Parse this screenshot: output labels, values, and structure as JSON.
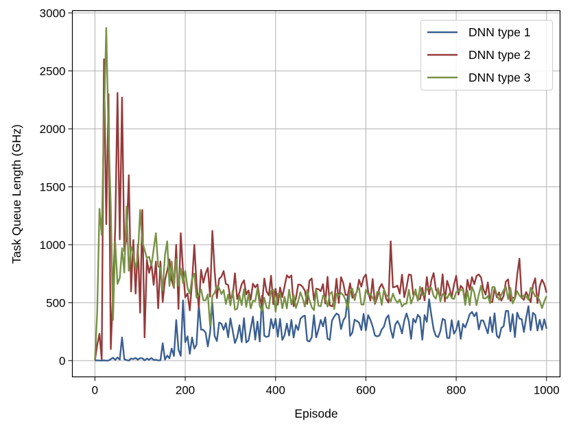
{
  "chart_data": {
    "type": "line",
    "title": "",
    "xlabel": "Episode",
    "ylabel": "Task Queue Length (GHz)",
    "xlim": [
      -50,
      1030
    ],
    "ylim": [
      -140,
      3020
    ],
    "xticks": [
      0,
      200,
      400,
      600,
      800,
      1000
    ],
    "yticks": [
      0,
      500,
      1000,
      1500,
      2000,
      2500,
      3000
    ],
    "grid": true,
    "legend_position": "top-right",
    "sample_step": 5,
    "series": [
      {
        "name": "DNN type 1",
        "color": "#3a5f91",
        "anchors": [
          [
            0,
            0
          ],
          [
            20,
            5
          ],
          [
            40,
            15
          ],
          [
            60,
            20
          ],
          [
            80,
            10
          ],
          [
            100,
            15
          ],
          [
            120,
            25
          ],
          [
            140,
            40
          ],
          [
            160,
            60
          ],
          [
            180,
            80
          ],
          [
            200,
            120
          ],
          [
            220,
            150
          ],
          [
            240,
            200
          ],
          [
            260,
            230
          ],
          [
            280,
            250
          ],
          [
            300,
            260
          ],
          [
            350,
            270
          ],
          [
            400,
            280
          ],
          [
            500,
            280
          ],
          [
            600,
            300
          ],
          [
            700,
            290
          ],
          [
            800,
            300
          ],
          [
            900,
            310
          ],
          [
            1000,
            320
          ]
        ],
        "noise": [
          [
            0,
            10
          ],
          [
            100,
            20
          ],
          [
            180,
            60
          ],
          [
            200,
            100
          ],
          [
            300,
            120
          ],
          [
            1000,
            120
          ]
        ],
        "spikes": [
          [
            60,
            200
          ],
          [
            150,
            150
          ],
          [
            180,
            350
          ],
          [
            195,
            520
          ],
          [
            230,
            480
          ],
          [
            260,
            500
          ],
          [
            370,
            560
          ],
          [
            560,
            560
          ],
          [
            740,
            530
          ],
          [
            960,
            470
          ]
        ]
      },
      {
        "name": "DNN type 2",
        "color": "#953a3a",
        "anchors": [
          [
            0,
            0
          ],
          [
            10,
            50
          ],
          [
            15,
            200
          ],
          [
            20,
            700
          ],
          [
            25,
            1300
          ],
          [
            30,
            1100
          ],
          [
            40,
            1000
          ],
          [
            50,
            1050
          ],
          [
            60,
            1000
          ],
          [
            70,
            900
          ],
          [
            80,
            800
          ],
          [
            90,
            700
          ],
          [
            100,
            720
          ],
          [
            120,
            680
          ],
          [
            140,
            670
          ],
          [
            160,
            640
          ],
          [
            180,
            620
          ],
          [
            200,
            620
          ],
          [
            240,
            640
          ],
          [
            280,
            640
          ],
          [
            300,
            620
          ],
          [
            400,
            600
          ],
          [
            500,
            600
          ],
          [
            600,
            620
          ],
          [
            700,
            640
          ],
          [
            800,
            640
          ],
          [
            900,
            630
          ],
          [
            1000,
            610
          ]
        ],
        "noise": [
          [
            0,
            30
          ],
          [
            15,
            300
          ],
          [
            40,
            500
          ],
          [
            80,
            400
          ],
          [
            130,
            280
          ],
          [
            200,
            200
          ],
          [
            300,
            140
          ],
          [
            1000,
            130
          ]
        ],
        "spikes": [
          [
            22,
            2600
          ],
          [
            28,
            2300
          ],
          [
            35,
            100
          ],
          [
            50,
            2310
          ],
          [
            60,
            2270
          ],
          [
            75,
            1600
          ],
          [
            105,
            1300
          ],
          [
            110,
            200
          ],
          [
            180,
            1000
          ],
          [
            190,
            1100
          ],
          [
            220,
            1000
          ],
          [
            262,
            1120
          ],
          [
            655,
            1030
          ],
          [
            940,
            880
          ]
        ]
      },
      {
        "name": "DNN type 3",
        "color": "#779245",
        "anchors": [
          [
            0,
            0
          ],
          [
            5,
            300
          ],
          [
            10,
            800
          ],
          [
            15,
            1000
          ],
          [
            20,
            1200
          ],
          [
            25,
            1300
          ],
          [
            30,
            1100
          ],
          [
            40,
            950
          ],
          [
            50,
            920
          ],
          [
            60,
            950
          ],
          [
            80,
            900
          ],
          [
            100,
            850
          ],
          [
            120,
            800
          ],
          [
            150,
            760
          ],
          [
            200,
            720
          ],
          [
            230,
            620
          ],
          [
            260,
            560
          ],
          [
            300,
            540
          ],
          [
            400,
            520
          ],
          [
            500,
            520
          ],
          [
            600,
            540
          ],
          [
            700,
            550
          ],
          [
            800,
            560
          ],
          [
            900,
            560
          ],
          [
            1000,
            540
          ]
        ],
        "noise": [
          [
            0,
            100
          ],
          [
            20,
            400
          ],
          [
            60,
            250
          ],
          [
            120,
            180
          ],
          [
            200,
            130
          ],
          [
            300,
            100
          ],
          [
            1000,
            90
          ]
        ],
        "spikes": [
          [
            25,
            2870
          ],
          [
            22,
            2080
          ],
          [
            30,
            1950
          ],
          [
            12,
            1310
          ],
          [
            70,
            1330
          ],
          [
            40,
            350
          ],
          [
            100,
            1300
          ],
          [
            135,
            1100
          ],
          [
            160,
            1030
          ],
          [
            255,
            300
          ]
        ]
      }
    ]
  }
}
